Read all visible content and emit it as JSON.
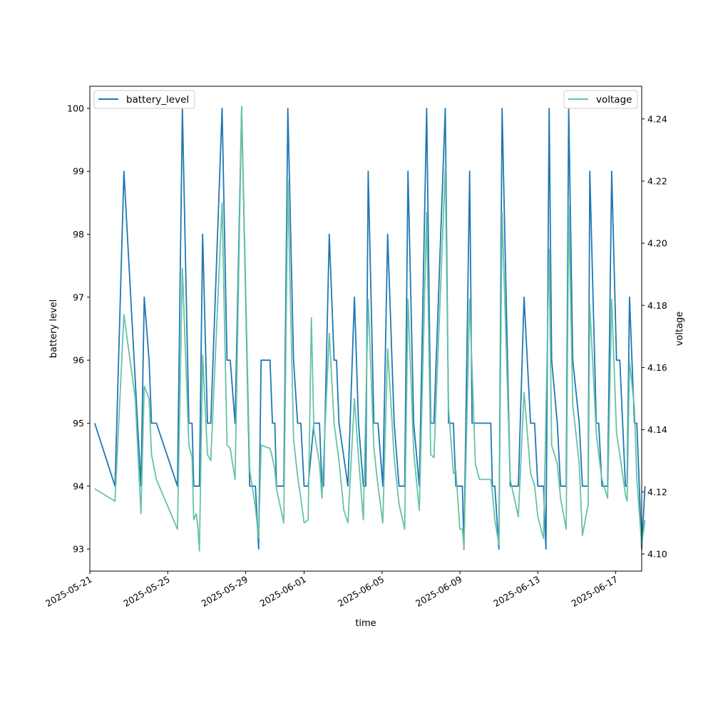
{
  "chart_data": {
    "type": "line",
    "title": "",
    "xlabel": "time",
    "ylabel_left": "battery level",
    "ylabel_right": "voltage",
    "x_ticks": [
      "2025-05-21",
      "2025-05-25",
      "2025-05-29",
      "2025-06-01",
      "2025-06-05",
      "2025-06-09",
      "2025-06-13",
      "2025-06-17"
    ],
    "xlim": [
      "2025-05-21T00:00",
      "2025-06-18T08:00"
    ],
    "y_left_ticks": [
      93,
      94,
      95,
      96,
      97,
      98,
      99,
      100
    ],
    "y_left_lim": [
      92.65,
      100.35
    ],
    "y_right_ticks": [
      "4.10",
      "4.12",
      "4.14",
      "4.16",
      "4.18",
      "4.20",
      "4.22",
      "4.24"
    ],
    "y_right_lim": [
      4.0945,
      4.2505
    ],
    "grid": false,
    "legend_left": "upper left",
    "legend_right": "upper right",
    "series": [
      {
        "name": "battery_level",
        "axis": "left",
        "color": "#1f77b4",
        "points": [
          [
            "2025-05-21T06:00",
            95
          ],
          [
            "2025-05-22T07:00",
            94
          ],
          [
            "2025-05-22T18:00",
            99
          ],
          [
            "2025-05-23T15:00",
            94
          ],
          [
            "2025-05-23T19:00",
            97
          ],
          [
            "2025-05-24T01:00",
            96
          ],
          [
            "2025-05-24T04:00",
            95
          ],
          [
            "2025-05-24T10:00",
            95
          ],
          [
            "2025-05-25T12:00",
            94
          ],
          [
            "2025-05-25T18:00",
            100
          ],
          [
            "2025-05-26T02:00",
            95
          ],
          [
            "2025-05-26T06:00",
            95
          ],
          [
            "2025-05-26T08:00",
            94
          ],
          [
            "2025-05-26T15:00",
            94
          ],
          [
            "2025-05-26T19:00",
            98
          ],
          [
            "2025-05-27T01:00",
            95
          ],
          [
            "2025-05-27T05:00",
            95
          ],
          [
            "2025-05-27T19:00",
            100
          ],
          [
            "2025-05-28T01:00",
            96
          ],
          [
            "2025-05-28T05:00",
            96
          ],
          [
            "2025-05-28T11:00",
            95
          ],
          [
            "2025-05-28T19:00",
            100
          ],
          [
            "2025-05-29T05:00",
            94
          ],
          [
            "2025-05-29T12:00",
            94
          ],
          [
            "2025-05-29T16:00",
            93
          ],
          [
            "2025-05-29T19:00",
            96
          ],
          [
            "2025-05-30T06:00",
            96
          ],
          [
            "2025-05-30T09:00",
            95
          ],
          [
            "2025-05-30T12:00",
            95
          ],
          [
            "2025-05-30T14:00",
            94
          ],
          [
            "2025-05-30T23:00",
            94
          ],
          [
            "2025-05-31T04:00",
            100
          ],
          [
            "2025-05-31T11:00",
            96
          ],
          [
            "2025-05-31T16:00",
            95
          ],
          [
            "2025-05-31T20:00",
            95
          ],
          [
            "2025-06-01T00:00",
            94
          ],
          [
            "2025-06-01T05:00",
            94
          ],
          [
            "2025-06-01T12:00",
            95
          ],
          [
            "2025-06-01T19:00",
            95
          ],
          [
            "2025-06-01T22:00",
            94
          ],
          [
            "2025-06-02T00:00",
            94
          ],
          [
            "2025-06-02T07:00",
            98
          ],
          [
            "2025-06-02T13:00",
            96
          ],
          [
            "2025-06-02T16:00",
            96
          ],
          [
            "2025-06-02T19:00",
            95
          ],
          [
            "2025-06-03T06:00",
            94
          ],
          [
            "2025-06-03T14:00",
            97
          ],
          [
            "2025-06-03T19:00",
            95
          ],
          [
            "2025-06-04T01:00",
            94
          ],
          [
            "2025-06-04T04:00",
            94
          ],
          [
            "2025-06-04T07:00",
            99
          ],
          [
            "2025-06-04T14:00",
            95
          ],
          [
            "2025-06-04T19:00",
            95
          ],
          [
            "2025-06-05T01:00",
            94
          ],
          [
            "2025-06-05T07:00",
            98
          ],
          [
            "2025-06-05T15:00",
            95
          ],
          [
            "2025-06-05T21:00",
            94
          ],
          [
            "2025-06-06T04:00",
            94
          ],
          [
            "2025-06-06T08:00",
            99
          ],
          [
            "2025-06-06T15:00",
            95
          ],
          [
            "2025-06-06T22:00",
            94
          ],
          [
            "2025-06-07T07:00",
            100
          ],
          [
            "2025-06-07T12:00",
            95
          ],
          [
            "2025-06-07T16:00",
            95
          ],
          [
            "2025-06-08T06:00",
            100
          ],
          [
            "2025-06-08T10:00",
            95
          ],
          [
            "2025-06-08T16:00",
            95
          ],
          [
            "2025-06-08T19:00",
            94
          ],
          [
            "2025-06-09T03:00",
            94
          ],
          [
            "2025-06-09T05:00",
            93
          ],
          [
            "2025-06-09T12:00",
            99
          ],
          [
            "2025-06-09T15:00",
            95
          ],
          [
            "2025-06-10T14:00",
            95
          ],
          [
            "2025-06-10T16:00",
            94
          ],
          [
            "2025-06-10T19:00",
            94
          ],
          [
            "2025-06-11T00:00",
            93
          ],
          [
            "2025-06-11T04:00",
            100
          ],
          [
            "2025-06-11T14:00",
            94
          ],
          [
            "2025-06-12T00:00",
            94
          ],
          [
            "2025-06-12T07:00",
            97
          ],
          [
            "2025-06-12T15:00",
            95
          ],
          [
            "2025-06-12T20:00",
            95
          ],
          [
            "2025-06-13T00:00",
            94
          ],
          [
            "2025-06-13T07:00",
            94
          ],
          [
            "2025-06-13T10:00",
            93
          ],
          [
            "2025-06-13T14:00",
            100
          ],
          [
            "2025-06-13T17:00",
            96
          ],
          [
            "2025-06-14T00:00",
            95
          ],
          [
            "2025-06-14T04:00",
            94
          ],
          [
            "2025-06-14T11:00",
            94
          ],
          [
            "2025-06-14T14:00",
            100
          ],
          [
            "2025-06-14T19:00",
            96
          ],
          [
            "2025-06-15T03:00",
            95
          ],
          [
            "2025-06-15T07:00",
            94
          ],
          [
            "2025-06-15T14:00",
            94
          ],
          [
            "2025-06-15T16:00",
            99
          ],
          [
            "2025-06-16T00:00",
            95
          ],
          [
            "2025-06-16T03:00",
            95
          ],
          [
            "2025-06-16T07:00",
            94
          ],
          [
            "2025-06-16T14:00",
            94
          ],
          [
            "2025-06-16T19:00",
            99
          ],
          [
            "2025-06-17T01:00",
            96
          ],
          [
            "2025-06-17T05:00",
            96
          ],
          [
            "2025-06-17T12:00",
            94
          ],
          [
            "2025-06-17T14:00",
            94
          ],
          [
            "2025-06-17T17:00",
            97
          ],
          [
            "2025-06-17T23:00",
            95
          ],
          [
            "2025-06-18T02:00",
            95
          ],
          [
            "2025-06-18T08:00",
            93
          ],
          [
            "2025-06-18T12:00",
            94
          ]
        ]
      },
      {
        "name": "voltage",
        "axis": "right",
        "color": "#66c2a5",
        "points": [
          [
            "2025-05-21T06:00",
            4.121
          ],
          [
            "2025-05-22T07:00",
            4.117
          ],
          [
            "2025-05-22T18:00",
            4.177
          ],
          [
            "2025-05-23T08:00",
            4.15
          ],
          [
            "2025-05-23T15:00",
            4.113
          ],
          [
            "2025-05-23T19:00",
            4.154
          ],
          [
            "2025-05-24T01:00",
            4.15
          ],
          [
            "2025-05-24T04:00",
            4.132
          ],
          [
            "2025-05-24T10:00",
            4.124
          ],
          [
            "2025-05-25T12:00",
            4.108
          ],
          [
            "2025-05-25T18:00",
            4.192
          ],
          [
            "2025-05-26T02:00",
            4.135
          ],
          [
            "2025-05-26T06:00",
            4.131
          ],
          [
            "2025-05-26T08:00",
            4.111
          ],
          [
            "2025-05-26T11:00",
            4.113
          ],
          [
            "2025-05-26T13:00",
            4.109
          ],
          [
            "2025-05-26T15:00",
            4.101
          ],
          [
            "2025-05-26T19:00",
            4.164
          ],
          [
            "2025-05-27T01:00",
            4.132
          ],
          [
            "2025-05-27T05:00",
            4.13
          ],
          [
            "2025-05-27T19:00",
            4.213
          ],
          [
            "2025-05-28T01:00",
            4.135
          ],
          [
            "2025-05-28T05:00",
            4.134
          ],
          [
            "2025-05-28T11:00",
            4.124
          ],
          [
            "2025-05-28T19:00",
            4.244
          ],
          [
            "2025-05-29T05:00",
            4.127
          ],
          [
            "2025-05-29T12:00",
            4.115
          ],
          [
            "2025-05-29T16:00",
            4.105
          ],
          [
            "2025-05-29T19:00",
            4.135
          ],
          [
            "2025-05-30T06:00",
            4.134
          ],
          [
            "2025-05-30T09:00",
            4.131
          ],
          [
            "2025-05-30T12:00",
            4.127
          ],
          [
            "2025-05-30T14:00",
            4.121
          ],
          [
            "2025-05-30T23:00",
            4.11
          ],
          [
            "2025-05-31T04:00",
            4.22
          ],
          [
            "2025-05-31T11:00",
            4.137
          ],
          [
            "2025-05-31T16:00",
            4.125
          ],
          [
            "2025-05-31T20:00",
            4.118
          ],
          [
            "2025-06-01T00:00",
            4.11
          ],
          [
            "2025-06-01T05:00",
            4.111
          ],
          [
            "2025-06-01T09:00",
            4.176
          ],
          [
            "2025-06-01T12:00",
            4.14
          ],
          [
            "2025-06-01T19:00",
            4.129
          ],
          [
            "2025-06-01T22:00",
            4.118
          ],
          [
            "2025-06-02T07:00",
            4.171
          ],
          [
            "2025-06-02T13:00",
            4.142
          ],
          [
            "2025-06-02T19:00",
            4.13
          ],
          [
            "2025-06-03T01:00",
            4.114
          ],
          [
            "2025-06-03T06:00",
            4.11
          ],
          [
            "2025-06-03T14:00",
            4.15
          ],
          [
            "2025-06-03T19:00",
            4.131
          ],
          [
            "2025-06-04T01:00",
            4.111
          ],
          [
            "2025-06-04T07:00",
            4.182
          ],
          [
            "2025-06-04T14:00",
            4.134
          ],
          [
            "2025-06-04T19:00",
            4.122
          ],
          [
            "2025-06-05T01:00",
            4.11
          ],
          [
            "2025-06-05T07:00",
            4.166
          ],
          [
            "2025-06-05T15:00",
            4.131
          ],
          [
            "2025-06-05T21:00",
            4.116
          ],
          [
            "2025-06-06T04:00",
            4.108
          ],
          [
            "2025-06-06T08:00",
            4.182
          ],
          [
            "2025-06-06T15:00",
            4.133
          ],
          [
            "2025-06-06T22:00",
            4.114
          ],
          [
            "2025-06-07T07:00",
            4.21
          ],
          [
            "2025-06-07T12:00",
            4.132
          ],
          [
            "2025-06-07T16:00",
            4.131
          ],
          [
            "2025-06-08T06:00",
            4.224
          ],
          [
            "2025-06-08T10:00",
            4.147
          ],
          [
            "2025-06-08T16:00",
            4.126
          ],
          [
            "2025-06-08T19:00",
            4.127
          ],
          [
            "2025-06-09T00:00",
            4.108
          ],
          [
            "2025-06-09T03:00",
            4.108
          ],
          [
            "2025-06-09T05:00",
            4.102
          ],
          [
            "2025-06-09T12:00",
            4.182
          ],
          [
            "2025-06-09T19:00",
            4.129
          ],
          [
            "2025-06-10T00:00",
            4.124
          ],
          [
            "2025-06-10T14:00",
            4.124
          ],
          [
            "2025-06-10T16:00",
            4.12
          ],
          [
            "2025-06-10T19:00",
            4.111
          ],
          [
            "2025-06-11T00:00",
            4.103
          ],
          [
            "2025-06-11T04:00",
            4.21
          ],
          [
            "2025-06-11T14:00",
            4.124
          ],
          [
            "2025-06-12T00:00",
            4.112
          ],
          [
            "2025-06-12T07:00",
            4.152
          ],
          [
            "2025-06-12T15:00",
            4.126
          ],
          [
            "2025-06-12T20:00",
            4.122
          ],
          [
            "2025-06-13T00:00",
            4.112
          ],
          [
            "2025-06-13T07:00",
            4.105
          ],
          [
            "2025-06-13T14:00",
            4.198
          ],
          [
            "2025-06-13T17:00",
            4.135
          ],
          [
            "2025-06-14T00:00",
            4.129
          ],
          [
            "2025-06-14T04:00",
            4.118
          ],
          [
            "2025-06-14T11:00",
            4.108
          ],
          [
            "2025-06-14T14:00",
            4.212
          ],
          [
            "2025-06-14T19:00",
            4.148
          ],
          [
            "2025-06-15T03:00",
            4.129
          ],
          [
            "2025-06-15T07:00",
            4.106
          ],
          [
            "2025-06-15T14:00",
            4.116
          ],
          [
            "2025-06-15T16:00",
            4.18
          ],
          [
            "2025-06-16T00:00",
            4.139
          ],
          [
            "2025-06-16T03:00",
            4.132
          ],
          [
            "2025-06-16T07:00",
            4.124
          ],
          [
            "2025-06-16T14:00",
            4.118
          ],
          [
            "2025-06-16T19:00",
            4.182
          ],
          [
            "2025-06-17T01:00",
            4.139
          ],
          [
            "2025-06-17T05:00",
            4.132
          ],
          [
            "2025-06-17T12:00",
            4.119
          ],
          [
            "2025-06-17T14:00",
            4.117
          ],
          [
            "2025-06-17T17:00",
            4.162
          ],
          [
            "2025-06-17T23:00",
            4.147
          ],
          [
            "2025-06-18T02:00",
            4.124
          ],
          [
            "2025-06-18T08:00",
            4.103
          ],
          [
            "2025-06-18T12:00",
            4.111
          ]
        ]
      }
    ]
  }
}
